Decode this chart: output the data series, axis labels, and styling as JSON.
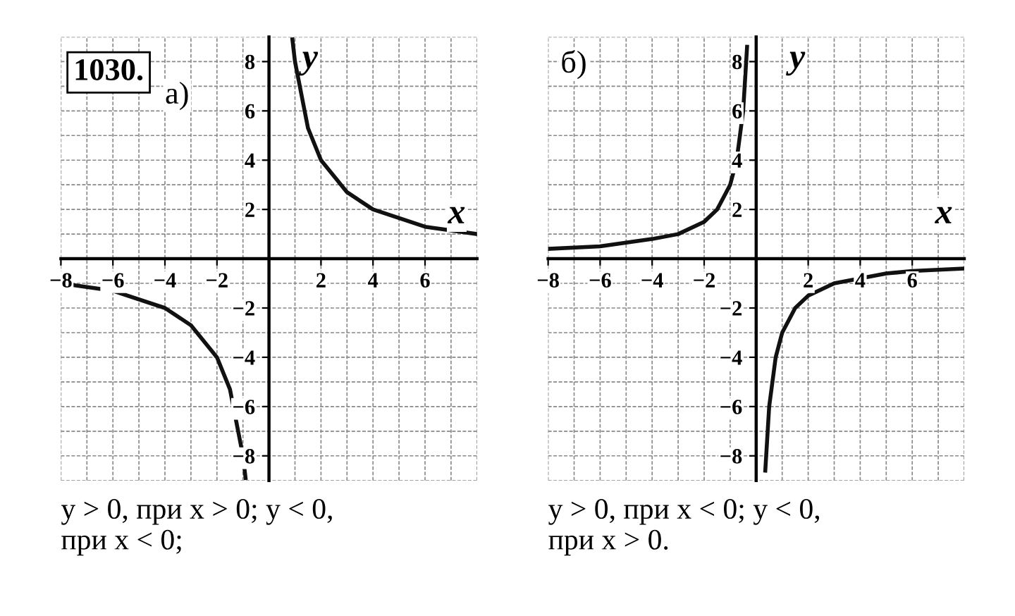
{
  "chart_data": [
    {
      "type": "line",
      "title": "а)",
      "xlabel": "x",
      "ylabel": "y",
      "annotations": [
        "1030.",
        "y > 0, при x > 0; y < 0,\nпри x < 0;"
      ],
      "xlim": [
        -8,
        8
      ],
      "ylim": [
        -9,
        9
      ],
      "xticks": [
        -8,
        -6,
        -4,
        -2,
        2,
        4,
        6
      ],
      "yticks": [
        -8,
        -6,
        -4,
        -2,
        2,
        4,
        6,
        8
      ],
      "grid": true,
      "line_style": "solid",
      "marker": "none",
      "series": [
        {
          "color": "#111111",
          "x": [
            -8,
            -6,
            -4,
            -3,
            -2,
            -1.5,
            -1,
            -0.9,
            0,
            0.9,
            1,
            1.5,
            2,
            3,
            4,
            6,
            8
          ],
          "values": [
            -1,
            -1.3,
            -2,
            -2.7,
            -4,
            -5.3,
            -8,
            -8.9,
            null,
            8.9,
            8,
            5.3,
            4,
            2.7,
            2,
            1.3,
            1
          ]
        }
      ]
    },
    {
      "type": "line",
      "title": "б)",
      "xlabel": "x",
      "ylabel": "y",
      "annotations": [
        "y > 0, при x < 0; y < 0,\nпри x > 0."
      ],
      "xlim": [
        -8,
        8
      ],
      "ylim": [
        -9,
        9
      ],
      "xticks": [
        -8,
        -6,
        -4,
        -2,
        2,
        4,
        6
      ],
      "yticks": [
        -8,
        -6,
        -4,
        -2,
        2,
        4,
        6,
        8
      ],
      "grid": true,
      "line_style": "solid",
      "marker": "none",
      "series": [
        {
          "color": "#111111",
          "x": [
            -8,
            -6,
            -4,
            -3,
            -2,
            -1.5,
            -1,
            -0.75,
            -0.5,
            -0.35,
            0,
            0.35,
            0.5,
            0.75,
            1,
            1.5,
            2,
            3,
            5,
            6,
            8
          ],
          "values": [
            0.4,
            0.5,
            0.8,
            1,
            1.5,
            2,
            3,
            4,
            6,
            8.6,
            null,
            -8.6,
            -6,
            -4,
            -3,
            -2,
            -1.5,
            -1,
            -0.6,
            -0.5,
            -0.4
          ]
        }
      ]
    }
  ]
}
